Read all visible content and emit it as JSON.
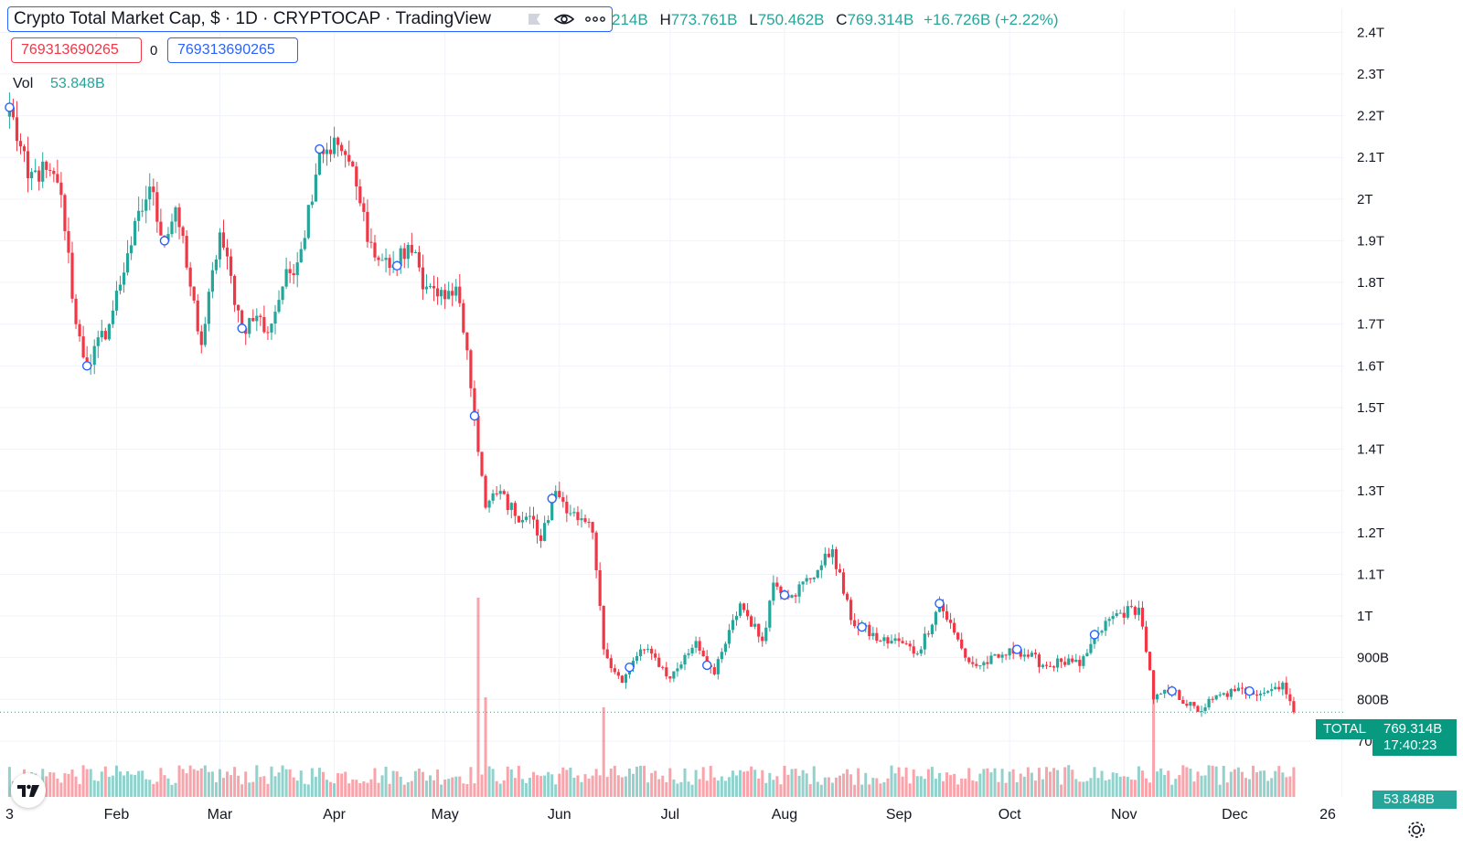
{
  "header": {
    "title": "Crypto Total Market Cap, $ · 1D · CRYPTOCAP · TradingView",
    "icons": [
      "flag-icon",
      "eye-icon",
      "more-icon"
    ]
  },
  "ohlc": {
    "open_partial": "214B",
    "high_key": "H",
    "high": "773.761B",
    "low_key": "L",
    "low": "750.462B",
    "close_key": "C",
    "close": "769.314B",
    "change": "+16.726B (+2.22%)"
  },
  "inputs": {
    "red_box": "769313690265",
    "zero": "0",
    "blue_box": "769313690265"
  },
  "volume_legend": {
    "label": "Vol",
    "value": "53.848B"
  },
  "price_tags": {
    "symbol": "TOTAL",
    "price": "769.314B",
    "countdown": "17:40:23",
    "volume": "53.848B"
  },
  "colors": {
    "up": "#26a69a",
    "down": "#f23645",
    "accent": "#2962ff",
    "tag": "#089981"
  },
  "chart_data": {
    "type": "candlestick",
    "y_axis": {
      "ticks": [
        "2.4T",
        "2.3T",
        "2.2T",
        "2.1T",
        "2T",
        "1.9T",
        "1.8T",
        "1.7T",
        "1.6T",
        "1.5T",
        "1.4T",
        "1.3T",
        "1.2T",
        "1.1T",
        "1T",
        "900B",
        "800B",
        "700B"
      ],
      "tick_values_billion": [
        2400,
        2300,
        2200,
        2100,
        2000,
        1900,
        1800,
        1700,
        1600,
        1500,
        1400,
        1300,
        1200,
        1100,
        1000,
        900,
        800,
        700
      ]
    },
    "x_axis": {
      "ticks": [
        "3",
        "Feb",
        "Mar",
        "Apr",
        "May",
        "Jun",
        "Jul",
        "Aug",
        "Sep",
        "Oct",
        "Nov",
        "Dec",
        "26"
      ]
    },
    "grid": true,
    "current_price_billion": 769.314,
    "close_anchors": [
      {
        "date": "2022-01-03",
        "close": 2220
      },
      {
        "date": "2022-01-08",
        "close": 2050
      },
      {
        "date": "2022-01-13",
        "close": 2070
      },
      {
        "date": "2022-01-17",
        "close": 2010
      },
      {
        "date": "2022-01-21",
        "close": 1700
      },
      {
        "date": "2022-01-24",
        "close": 1600
      },
      {
        "date": "2022-01-30",
        "close": 1700
      },
      {
        "date": "2022-02-04",
        "close": 1870
      },
      {
        "date": "2022-02-10",
        "close": 2030
      },
      {
        "date": "2022-02-14",
        "close": 1900
      },
      {
        "date": "2022-02-17",
        "close": 1980
      },
      {
        "date": "2022-02-21",
        "close": 1790
      },
      {
        "date": "2022-02-24",
        "close": 1650
      },
      {
        "date": "2022-03-01",
        "close": 1920
      },
      {
        "date": "2022-03-07",
        "close": 1690
      },
      {
        "date": "2022-03-11",
        "close": 1720
      },
      {
        "date": "2022-03-14",
        "close": 1680
      },
      {
        "date": "2022-03-18",
        "close": 1790
      },
      {
        "date": "2022-03-23",
        "close": 1880
      },
      {
        "date": "2022-03-28",
        "close": 2120
      },
      {
        "date": "2022-04-02",
        "close": 2130
      },
      {
        "date": "2022-04-05",
        "close": 2090
      },
      {
        "date": "2022-04-08",
        "close": 1990
      },
      {
        "date": "2022-04-12",
        "close": 1860
      },
      {
        "date": "2022-04-18",
        "close": 1840
      },
      {
        "date": "2022-04-21",
        "close": 1890
      },
      {
        "date": "2022-04-26",
        "close": 1790
      },
      {
        "date": "2022-05-01",
        "close": 1760
      },
      {
        "date": "2022-05-04",
        "close": 1790
      },
      {
        "date": "2022-05-06",
        "close": 1680
      },
      {
        "date": "2022-05-09",
        "close": 1480
      },
      {
        "date": "2022-05-12",
        "close": 1260
      },
      {
        "date": "2022-05-16",
        "close": 1300
      },
      {
        "date": "2022-05-20",
        "close": 1240
      },
      {
        "date": "2022-05-24",
        "close": 1240
      },
      {
        "date": "2022-05-27",
        "close": 1180
      },
      {
        "date": "2022-05-31",
        "close": 1300
      },
      {
        "date": "2022-06-06",
        "close": 1230
      },
      {
        "date": "2022-06-10",
        "close": 1200
      },
      {
        "date": "2022-06-13",
        "close": 920
      },
      {
        "date": "2022-06-18",
        "close": 840
      },
      {
        "date": "2022-06-23",
        "close": 920
      },
      {
        "date": "2022-06-27",
        "close": 900
      },
      {
        "date": "2022-07-01",
        "close": 850
      },
      {
        "date": "2022-07-08",
        "close": 940
      },
      {
        "date": "2022-07-13",
        "close": 860
      },
      {
        "date": "2022-07-20",
        "close": 1030
      },
      {
        "date": "2022-07-26",
        "close": 940
      },
      {
        "date": "2022-07-29",
        "close": 1080
      },
      {
        "date": "2022-08-03",
        "close": 1050
      },
      {
        "date": "2022-08-10",
        "close": 1110
      },
      {
        "date": "2022-08-14",
        "close": 1160
      },
      {
        "date": "2022-08-19",
        "close": 990
      },
      {
        "date": "2022-08-27",
        "close": 940
      },
      {
        "date": "2022-09-01",
        "close": 940
      },
      {
        "date": "2022-09-06",
        "close": 910
      },
      {
        "date": "2022-09-12",
        "close": 1030
      },
      {
        "date": "2022-09-16",
        "close": 960
      },
      {
        "date": "2022-09-19",
        "close": 900
      },
      {
        "date": "2022-09-22",
        "close": 880
      },
      {
        "date": "2022-09-28",
        "close": 900
      },
      {
        "date": "2022-10-03",
        "close": 920
      },
      {
        "date": "2022-10-11",
        "close": 880
      },
      {
        "date": "2022-10-15",
        "close": 890
      },
      {
        "date": "2022-10-20",
        "close": 880
      },
      {
        "date": "2022-10-25",
        "close": 960
      },
      {
        "date": "2022-10-29",
        "close": 1000
      },
      {
        "date": "2022-11-05",
        "close": 1020
      },
      {
        "date": "2022-11-08",
        "close": 870
      },
      {
        "date": "2022-11-09",
        "close": 800
      },
      {
        "date": "2022-11-14",
        "close": 820
      },
      {
        "date": "2022-11-21",
        "close": 770
      },
      {
        "date": "2022-11-25",
        "close": 800
      },
      {
        "date": "2022-12-01",
        "close": 820
      },
      {
        "date": "2022-12-05",
        "close": 820
      },
      {
        "date": "2022-12-10",
        "close": 820
      },
      {
        "date": "2022-12-14",
        "close": 840
      },
      {
        "date": "2022-12-17",
        "close": 769.314
      }
    ],
    "volume_spikes": [
      {
        "date": "2022-05-10",
        "volume_rel": 1.0
      },
      {
        "date": "2022-05-12",
        "volume_rel": 0.5
      },
      {
        "date": "2022-06-13",
        "volume_rel": 0.45
      },
      {
        "date": "2022-11-09",
        "volume_rel": 0.55
      }
    ],
    "dividend_markers": [
      "2022-01-03",
      "2022-01-24",
      "2022-02-14",
      "2022-03-07",
      "2022-03-28",
      "2022-04-18",
      "2022-05-09",
      "2022-05-30",
      "2022-06-20",
      "2022-07-11",
      "2022-08-01",
      "2022-08-22",
      "2022-09-12",
      "2022-10-03",
      "2022-10-24",
      "2022-11-14",
      "2022-12-05"
    ]
  }
}
